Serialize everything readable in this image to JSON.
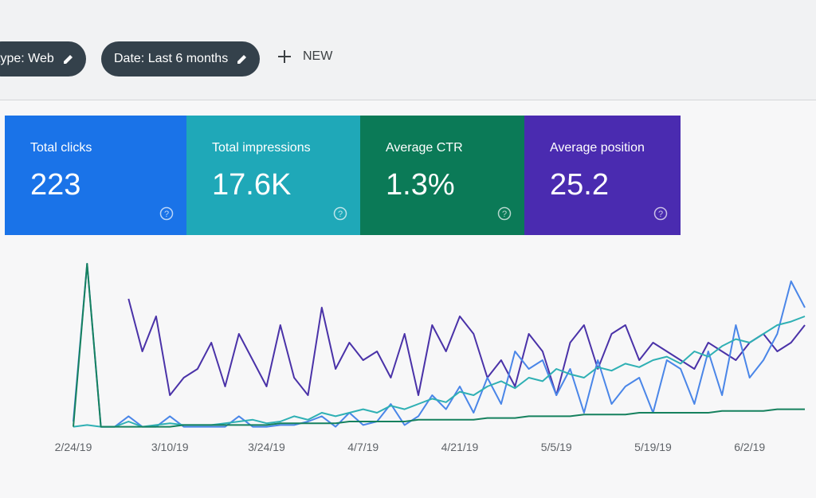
{
  "filters": [
    "type: Web",
    "Date: Last 6 months"
  ],
  "new_button": "NEW",
  "metrics": [
    {
      "label": "Total clicks",
      "value": "223",
      "color": "#1a73e8"
    },
    {
      "label": "Total impressions",
      "value": "17.6K",
      "color": "#1fa8b8"
    },
    {
      "label": "Average CTR",
      "value": "1.3%",
      "color": "#0b7a57"
    },
    {
      "label": "Average position",
      "value": "25.2",
      "color": "#4a2bb0"
    }
  ],
  "chart_data": {
    "type": "line",
    "categories": [
      "2/24/19",
      null,
      null,
      null,
      null,
      null,
      null,
      "3/10/19",
      null,
      null,
      null,
      null,
      null,
      null,
      "3/24/19",
      null,
      null,
      null,
      null,
      null,
      null,
      "4/7/19",
      null,
      null,
      null,
      null,
      null,
      null,
      "4/21/19",
      null,
      null,
      null,
      null,
      null,
      null,
      "5/5/19",
      null,
      null,
      null,
      null,
      null,
      null,
      "5/19/19",
      null,
      null,
      null,
      null,
      null,
      null,
      "6/2/19",
      null,
      null,
      null,
      null
    ],
    "ylim": [
      0,
      100
    ],
    "series": [
      {
        "color": "#4a32a8",
        "values": [
          null,
          null,
          null,
          null,
          75,
          45,
          65,
          20,
          30,
          35,
          50,
          25,
          55,
          40,
          25,
          60,
          30,
          20,
          70,
          35,
          50,
          40,
          45,
          30,
          55,
          20,
          60,
          45,
          65,
          55,
          30,
          40,
          25,
          55,
          45,
          20,
          50,
          60,
          35,
          55,
          60,
          40,
          50,
          45,
          40,
          35,
          50,
          45,
          40,
          50,
          55,
          45,
          50,
          60
        ]
      },
      {
        "color": "#4a86e8",
        "values": [
          5,
          95,
          2,
          2,
          8,
          2,
          2,
          8,
          2,
          2,
          2,
          2,
          8,
          2,
          2,
          3,
          3,
          5,
          8,
          2,
          10,
          3,
          5,
          15,
          3,
          8,
          20,
          12,
          25,
          10,
          30,
          15,
          45,
          35,
          40,
          20,
          35,
          10,
          40,
          15,
          25,
          30,
          10,
          40,
          35,
          15,
          45,
          20,
          60,
          30,
          40,
          55,
          85,
          70
        ]
      },
      {
        "color": "#2fb0b4",
        "values": [
          2,
          3,
          2,
          2,
          5,
          2,
          3,
          4,
          3,
          3,
          3,
          4,
          5,
          6,
          4,
          5,
          8,
          6,
          10,
          8,
          10,
          12,
          10,
          14,
          12,
          15,
          18,
          16,
          22,
          20,
          25,
          28,
          24,
          30,
          28,
          35,
          32,
          30,
          36,
          34,
          38,
          36,
          40,
          42,
          38,
          45,
          42,
          48,
          52,
          50,
          55,
          60,
          62,
          65
        ]
      },
      {
        "color": "#16815e",
        "values": [
          2,
          95,
          2,
          2,
          2,
          2,
          2,
          2,
          3,
          3,
          3,
          3,
          3,
          3,
          3,
          4,
          4,
          4,
          4,
          4,
          5,
          5,
          5,
          5,
          5,
          6,
          6,
          6,
          6,
          6,
          7,
          7,
          7,
          8,
          8,
          8,
          8,
          9,
          9,
          9,
          9,
          10,
          10,
          10,
          10,
          10,
          10,
          11,
          11,
          11,
          11,
          12,
          12,
          12
        ]
      }
    ]
  }
}
